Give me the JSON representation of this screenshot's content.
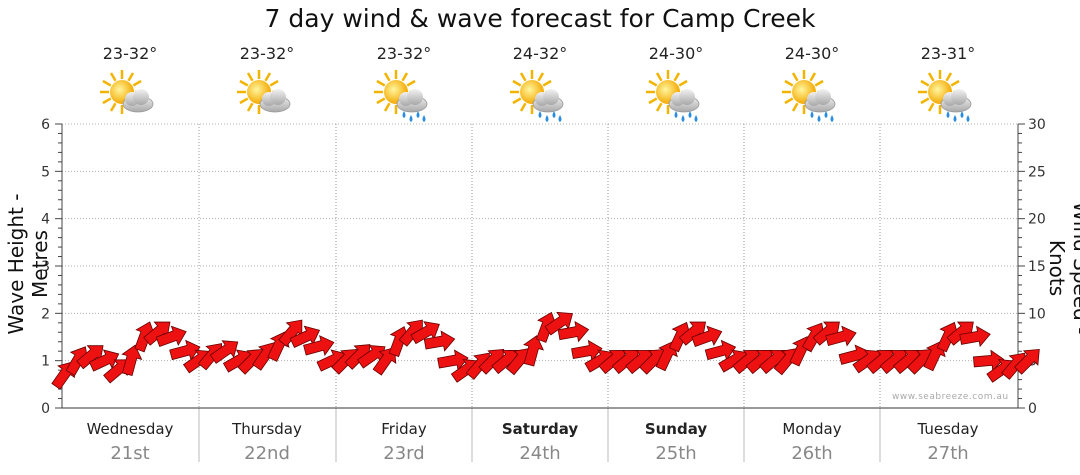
{
  "title": "7 day wind & wave forecast for Camp Creek",
  "watermark": "www.seabreeze.com.au",
  "colors": {
    "arrow": "#ee1111",
    "arrow_stroke": "#660000",
    "grid": "#b0b0b0"
  },
  "days": [
    {
      "name": "Wednesday",
      "date": "21st",
      "temp": "23-32°",
      "icon": "sun-cloud-icon",
      "bold": false
    },
    {
      "name": "Thursday",
      "date": "22nd",
      "temp": "23-32°",
      "icon": "sun-cloud-icon",
      "bold": false
    },
    {
      "name": "Friday",
      "date": "23rd",
      "temp": "23-32°",
      "icon": "sun-cloud-rain-icon",
      "bold": false
    },
    {
      "name": "Saturday",
      "date": "24th",
      "temp": "24-32°",
      "icon": "sun-cloud-rain-icon",
      "bold": true
    },
    {
      "name": "Sunday",
      "date": "25th",
      "temp": "24-30°",
      "icon": "sun-cloud-rain-icon",
      "bold": true
    },
    {
      "name": "Monday",
      "date": "26th",
      "temp": "24-30°",
      "icon": "sun-cloud-rain-icon",
      "bold": false
    },
    {
      "name": "Tuesday",
      "date": "27th",
      "temp": "23-31°",
      "icon": "sun-cloud-rain-icon",
      "bold": false
    }
  ],
  "chart_data": {
    "type": "line",
    "title": "7 day wind & wave forecast for Camp Creek",
    "ylabel": "Wave Height - Metres",
    "y2label": "Wind Speed - Knots",
    "ylim": [
      0,
      6
    ],
    "y2lim": [
      0,
      30
    ],
    "yticks": [
      "0",
      "1",
      "2",
      "3",
      "4",
      "5",
      "6"
    ],
    "y2ticks": [
      "0",
      "5",
      "10",
      "15",
      "20",
      "25",
      "30"
    ],
    "series": [
      {
        "name": "Wind Speed (knots)",
        "marker": "direction-arrow",
        "values": [
          3.5,
          5,
          5.5,
          5,
          4,
          5,
          7.5,
          8,
          7.5,
          6,
          5,
          5.5,
          6,
          5,
          5,
          5.5,
          6.5,
          8,
          7.5,
          6.5,
          5,
          5,
          5.5,
          5.5,
          5,
          7,
          8,
          8,
          7,
          5,
          4,
          4.5,
          5,
          5,
          5,
          6,
          8.5,
          9,
          8,
          6,
          5,
          5,
          5,
          5,
          5,
          5.5,
          7.5,
          8,
          7.5,
          6,
          5,
          5,
          5,
          5,
          5,
          6,
          7.5,
          8,
          7.5,
          5.5,
          5,
          5,
          5,
          5,
          5,
          5.5,
          7.5,
          8,
          7.5,
          5,
          4,
          4.5,
          5
        ]
      }
    ]
  }
}
